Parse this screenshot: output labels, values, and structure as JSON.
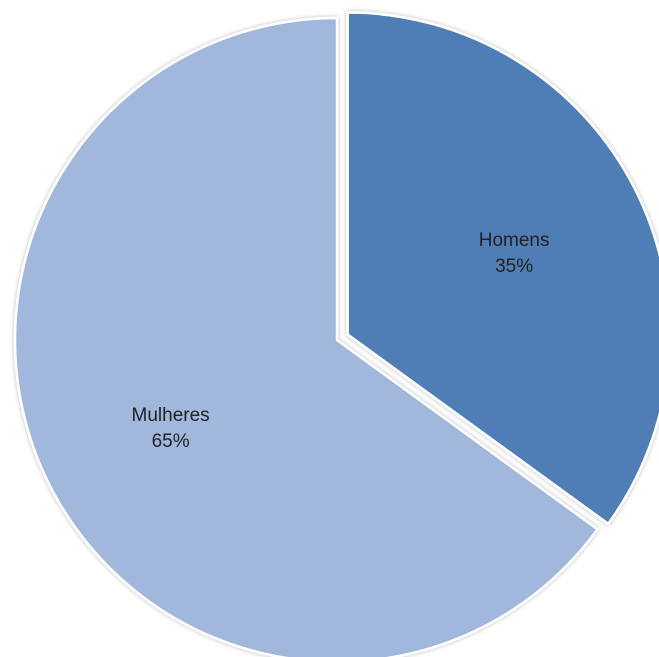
{
  "chart_data": {
    "type": "pie",
    "title": "",
    "slices": [
      {
        "label": "Homens",
        "value": 35,
        "value_label": "35%",
        "color": "#4f7db5",
        "exploded": true
      },
      {
        "label": "Mulheres",
        "value": 65,
        "value_label": "65%",
        "color": "#a1b7dc",
        "exploded": false
      }
    ],
    "start_angle": "12 o'clock",
    "direction": "clockwise",
    "data_labels": "inside"
  }
}
